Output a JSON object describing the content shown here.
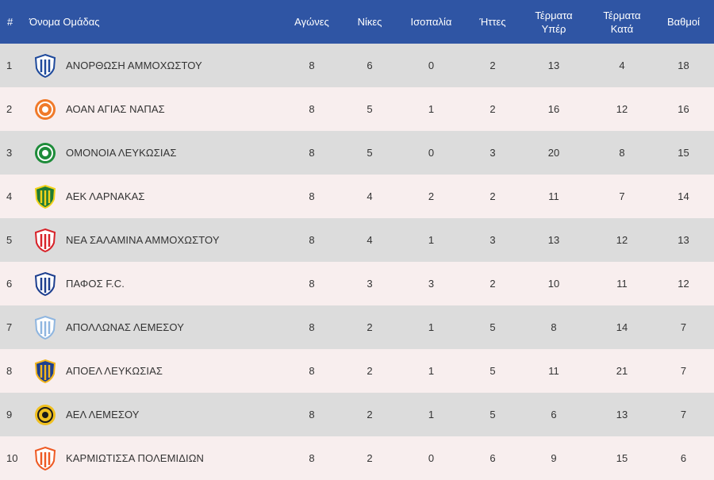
{
  "table": {
    "headers": {
      "pos": "#",
      "team": "Όνομα Ομάδας",
      "played": "Αγώνες",
      "wins": "Νίκες",
      "draws": "Ισοπαλία",
      "losses": "Ήττες",
      "gf_line1": "Τέρματα",
      "gf_line2": "Υπέρ",
      "ga_line1": "Τέρματα",
      "ga_line2": "Κατά",
      "points": "Βαθμοί"
    },
    "rows": [
      {
        "pos": "1",
        "team": "ΑΝΟΡΘΩΣΗ ΑΜΜΟΧΩΣΤΟΥ",
        "played": "8",
        "wins": "6",
        "draws": "0",
        "losses": "2",
        "gf": "13",
        "ga": "4",
        "points": "18",
        "logo_icon": "anorthosis-crest-icon",
        "logo_colors": [
          "#1f4a9c",
          "#ffffff"
        ]
      },
      {
        "pos": "2",
        "team": "ΑΟΑΝ ΑΓΙΑΣ ΝΑΠΑΣ",
        "played": "8",
        "wins": "5",
        "draws": "1",
        "losses": "2",
        "gf": "16",
        "ga": "12",
        "points": "16",
        "logo_icon": "ayia-napa-crest-icon",
        "logo_colors": [
          "#f07a2a",
          "#ffffff"
        ]
      },
      {
        "pos": "3",
        "team": "ΟΜΟΝΟΙΑ ΛΕΥΚΩΣΙΑΣ",
        "played": "8",
        "wins": "5",
        "draws": "0",
        "losses": "3",
        "gf": "20",
        "ga": "8",
        "points": "15",
        "logo_icon": "omonoia-crest-icon",
        "logo_colors": [
          "#1e8c3a",
          "#ffffff"
        ]
      },
      {
        "pos": "4",
        "team": "ΑΕΚ ΛΑΡΝΑΚΑΣ",
        "played": "8",
        "wins": "4",
        "draws": "2",
        "losses": "2",
        "gf": "11",
        "ga": "7",
        "points": "14",
        "logo_icon": "aek-larnaca-crest-icon",
        "logo_colors": [
          "#f2d21b",
          "#1e7a34"
        ]
      },
      {
        "pos": "5",
        "team": "ΝΕΑ ΣΑΛΑΜΙΝΑ ΑΜΜΟΧΩΣΤΟΥ",
        "played": "8",
        "wins": "4",
        "draws": "1",
        "losses": "3",
        "gf": "13",
        "ga": "12",
        "points": "13",
        "logo_icon": "nea-salamina-crest-icon",
        "logo_colors": [
          "#d8232a",
          "#ffffff"
        ]
      },
      {
        "pos": "6",
        "team": "ΠΑΦΟΣ F.C.",
        "played": "8",
        "wins": "3",
        "draws": "3",
        "losses": "2",
        "gf": "10",
        "ga": "11",
        "points": "12",
        "logo_icon": "pafos-crest-icon",
        "logo_colors": [
          "#1d3f8f",
          "#ffffff"
        ]
      },
      {
        "pos": "7",
        "team": "ΑΠΟΛΛΩΝΑΣ ΛΕΜΕΣΟΥ",
        "played": "8",
        "wins": "2",
        "draws": "1",
        "losses": "5",
        "gf": "8",
        "ga": "14",
        "points": "7",
        "logo_icon": "apollon-crest-icon",
        "logo_colors": [
          "#8fb6e0",
          "#ffffff"
        ]
      },
      {
        "pos": "8",
        "team": "ΑΠΟΕΛ ΛΕΥΚΩΣΙΑΣ",
        "played": "8",
        "wins": "2",
        "draws": "1",
        "losses": "5",
        "gf": "11",
        "ga": "21",
        "points": "7",
        "logo_icon": "apoel-crest-icon",
        "logo_colors": [
          "#f2b51c",
          "#1d3f8f"
        ]
      },
      {
        "pos": "9",
        "team": "ΑΕΛ ΛΕΜΕΣΟΥ",
        "played": "8",
        "wins": "2",
        "draws": "1",
        "losses": "5",
        "gf": "6",
        "ga": "13",
        "points": "7",
        "logo_icon": "ael-crest-icon",
        "logo_colors": [
          "#f0c020",
          "#1a1a1a"
        ]
      },
      {
        "pos": "10",
        "team": "ΚΑΡΜΙΩΤΙΣΣΑ ΠΟΛΕΜΙΔΙΩΝ",
        "played": "8",
        "wins": "2",
        "draws": "0",
        "losses": "6",
        "gf": "9",
        "ga": "15",
        "points": "6",
        "logo_icon": "karmiotissa-crest-icon",
        "logo_colors": [
          "#ee5a24",
          "#ffffff"
        ]
      }
    ]
  }
}
